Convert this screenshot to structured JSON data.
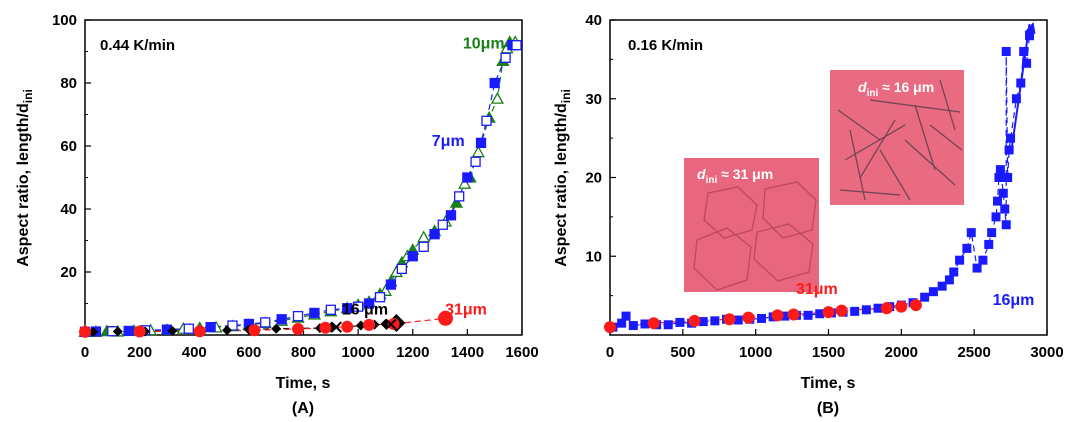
{
  "chart_data": [
    {
      "type": "scatter",
      "panel_label": "(A)",
      "annotation": "0.44 K/min",
      "xlabel": "Time, s",
      "ylabel_main": "Aspect ratio, length/d",
      "ylabel_sub": "ini",
      "xlim": [
        0,
        1600
      ],
      "ylim": [
        0,
        100
      ],
      "xticks": [
        0,
        200,
        400,
        600,
        800,
        1000,
        1200,
        1400,
        1600
      ],
      "yticks": [
        20,
        40,
        60,
        80,
        100
      ],
      "grid": false,
      "series": [
        {
          "name": "10μm",
          "color": "#1a7f1a",
          "marker": "triangle-mixed",
          "label_at": [
            1460,
            91
          ],
          "points": [
            [
              0,
              1
            ],
            [
              40,
              1
            ],
            [
              80,
              1.2
            ],
            [
              120,
              1.1
            ],
            [
              180,
              1.3
            ],
            [
              240,
              1.5
            ],
            [
              300,
              1.6
            ],
            [
              360,
              2
            ],
            [
              420,
              2.2
            ],
            [
              480,
              2.4
            ],
            [
              540,
              2.8
            ],
            [
              600,
              3.2
            ],
            [
              660,
              3.8
            ],
            [
              720,
              4.5
            ],
            [
              780,
              5.5
            ],
            [
              840,
              6.5
            ],
            [
              900,
              7.5
            ],
            [
              960,
              8.5
            ],
            [
              1000,
              9.5
            ],
            [
              1040,
              10.5
            ],
            [
              1080,
              13
            ],
            [
              1100,
              14
            ],
            [
              1120,
              17
            ],
            [
              1140,
              20
            ],
            [
              1160,
              23
            ],
            [
              1180,
              25
            ],
            [
              1200,
              27
            ],
            [
              1240,
              31
            ],
            [
              1280,
              33
            ],
            [
              1320,
              36
            ],
            [
              1360,
              42
            ],
            [
              1390,
              48
            ],
            [
              1410,
              50
            ],
            [
              1440,
              58
            ],
            [
              1480,
              69
            ],
            [
              1510,
              75
            ],
            [
              1530,
              87
            ],
            [
              1545,
              91
            ],
            [
              1555,
              93
            ],
            [
              1575,
              93
            ]
          ]
        },
        {
          "name": "7μm",
          "color": "#1a1aff",
          "marker": "square-mixed",
          "label_at": [
            1330,
            60
          ],
          "points": [
            [
              0,
              1
            ],
            [
              40,
              1.1
            ],
            [
              100,
              1.2
            ],
            [
              160,
              1.3
            ],
            [
              220,
              1.5
            ],
            [
              300,
              1.7
            ],
            [
              380,
              2
            ],
            [
              460,
              2.5
            ],
            [
              540,
              3
            ],
            [
              600,
              3.5
            ],
            [
              660,
              4
            ],
            [
              720,
              5
            ],
            [
              780,
              6
            ],
            [
              840,
              7
            ],
            [
              900,
              8
            ],
            [
              960,
              8.5
            ],
            [
              1000,
              9
            ],
            [
              1040,
              10
            ],
            [
              1080,
              12
            ],
            [
              1120,
              16
            ],
            [
              1160,
              21
            ],
            [
              1200,
              25
            ],
            [
              1240,
              28
            ],
            [
              1280,
              32
            ],
            [
              1310,
              35
            ],
            [
              1340,
              38
            ],
            [
              1370,
              44
            ],
            [
              1400,
              50
            ],
            [
              1430,
              55
            ],
            [
              1450,
              61
            ],
            [
              1470,
              68
            ],
            [
              1500,
              80
            ],
            [
              1540,
              88
            ],
            [
              1565,
              92
            ],
            [
              1580,
              92
            ]
          ]
        },
        {
          "name": "16 μm",
          "color": "#000000",
          "marker": "diamond",
          "label_at": [
            1025,
            6.5
          ],
          "points": [
            [
              30,
              1
            ],
            [
              120,
              1.1
            ],
            [
              220,
              1.1
            ],
            [
              320,
              1.3
            ],
            [
              420,
              1.4
            ],
            [
              520,
              1.5
            ],
            [
              600,
              1.7
            ],
            [
              700,
              2
            ],
            [
              780,
              2.1
            ],
            [
              860,
              2.2
            ],
            [
              900,
              2.4
            ],
            [
              960,
              2.6
            ],
            [
              1010,
              3
            ],
            [
              1060,
              3.3
            ],
            [
              1100,
              3.5
            ],
            [
              1140,
              3.8
            ]
          ]
        },
        {
          "name": "31μm",
          "color": "#ff1a1a",
          "marker": "circle",
          "label_at": [
            1395,
            6.5
          ],
          "points": [
            [
              0,
              1
            ],
            [
              200,
              1.1
            ],
            [
              420,
              1.2
            ],
            [
              620,
              1.5
            ],
            [
              780,
              1.9
            ],
            [
              880,
              2.3
            ],
            [
              960,
              2.6
            ],
            [
              1040,
              3.2
            ],
            [
              1130,
              3.5
            ],
            [
              1320,
              5.3
            ]
          ]
        }
      ]
    },
    {
      "type": "scatter",
      "panel_label": "(B)",
      "annotation": "0.16 K/min",
      "xlabel": "Time, s",
      "ylabel_main": "Aspect ratio, length/d",
      "ylabel_sub": "ini",
      "xlim": [
        0,
        3000
      ],
      "ylim": [
        0,
        40
      ],
      "xticks": [
        0,
        500,
        1000,
        1500,
        2000,
        2500,
        3000
      ],
      "yticks": [
        10,
        20,
        30,
        40
      ],
      "grid": false,
      "series": [
        {
          "name": "16μm",
          "color": "#1a1aff",
          "marker": "square-filled",
          "label_at": [
            2770,
            3.8
          ],
          "points": [
            [
              20,
              1
            ],
            [
              80,
              1.5
            ],
            [
              110,
              2.4
            ],
            [
              160,
              1.2
            ],
            [
              240,
              1.4
            ],
            [
              320,
              1.3
            ],
            [
              400,
              1.3
            ],
            [
              480,
              1.6
            ],
            [
              560,
              1.5
            ],
            [
              640,
              1.7
            ],
            [
              720,
              1.8
            ],
            [
              800,
              2
            ],
            [
              880,
              1.9
            ],
            [
              960,
              2
            ],
            [
              1040,
              2.1
            ],
            [
              1120,
              2.3
            ],
            [
              1200,
              2.4
            ],
            [
              1280,
              2.5
            ],
            [
              1360,
              2.5
            ],
            [
              1440,
              2.7
            ],
            [
              1520,
              2.8
            ],
            [
              1600,
              2.9
            ],
            [
              1680,
              3
            ],
            [
              1760,
              3.2
            ],
            [
              1840,
              3.4
            ],
            [
              1920,
              3.6
            ],
            [
              2000,
              3.8
            ],
            [
              2080,
              4.1
            ],
            [
              2160,
              4.8
            ],
            [
              2220,
              5.5
            ],
            [
              2280,
              6.2
            ],
            [
              2330,
              7
            ],
            [
              2360,
              8
            ],
            [
              2400,
              9.5
            ],
            [
              2450,
              11
            ],
            [
              2480,
              13
            ],
            [
              2520,
              8.5
            ],
            [
              2560,
              9.5
            ],
            [
              2600,
              11.5
            ],
            [
              2620,
              13
            ],
            [
              2650,
              15
            ],
            [
              2660,
              17
            ],
            [
              2670,
              20
            ],
            [
              2680,
              21
            ],
            [
              2700,
              18
            ],
            [
              2710,
              16
            ],
            [
              2720,
              14
            ],
            [
              2730,
              20
            ],
            [
              2740,
              23.5
            ],
            [
              2750,
              25
            ],
            [
              2720,
              36
            ],
            [
              2790,
              30
            ],
            [
              2820,
              32
            ],
            [
              2840,
              36
            ],
            [
              2860,
              34.5
            ],
            [
              2880,
              38
            ]
          ]
        },
        {
          "name": "31μm",
          "color": "#ff1a1a",
          "marker": "circle",
          "label_at": [
            1420,
            5.2
          ],
          "points": [
            [
              0,
              1
            ],
            [
              300,
              1.5
            ],
            [
              580,
              1.8
            ],
            [
              820,
              2
            ],
            [
              950,
              2.2
            ],
            [
              1150,
              2.5
            ],
            [
              1260,
              2.6
            ],
            [
              1500,
              2.9
            ],
            [
              1590,
              3.1
            ],
            [
              1900,
              3.4
            ],
            [
              2000,
              3.6
            ],
            [
              2100,
              3.8
            ]
          ]
        }
      ],
      "insets": [
        {
          "label_main": "d",
          "label_sub": "ini",
          "label_rest": " ≈ 31 μm",
          "fill": "#e8677f"
        },
        {
          "label_main": "d",
          "label_sub": "ini",
          "label_rest": " ≈ 16 μm",
          "fill": "#e96b82"
        }
      ]
    }
  ]
}
